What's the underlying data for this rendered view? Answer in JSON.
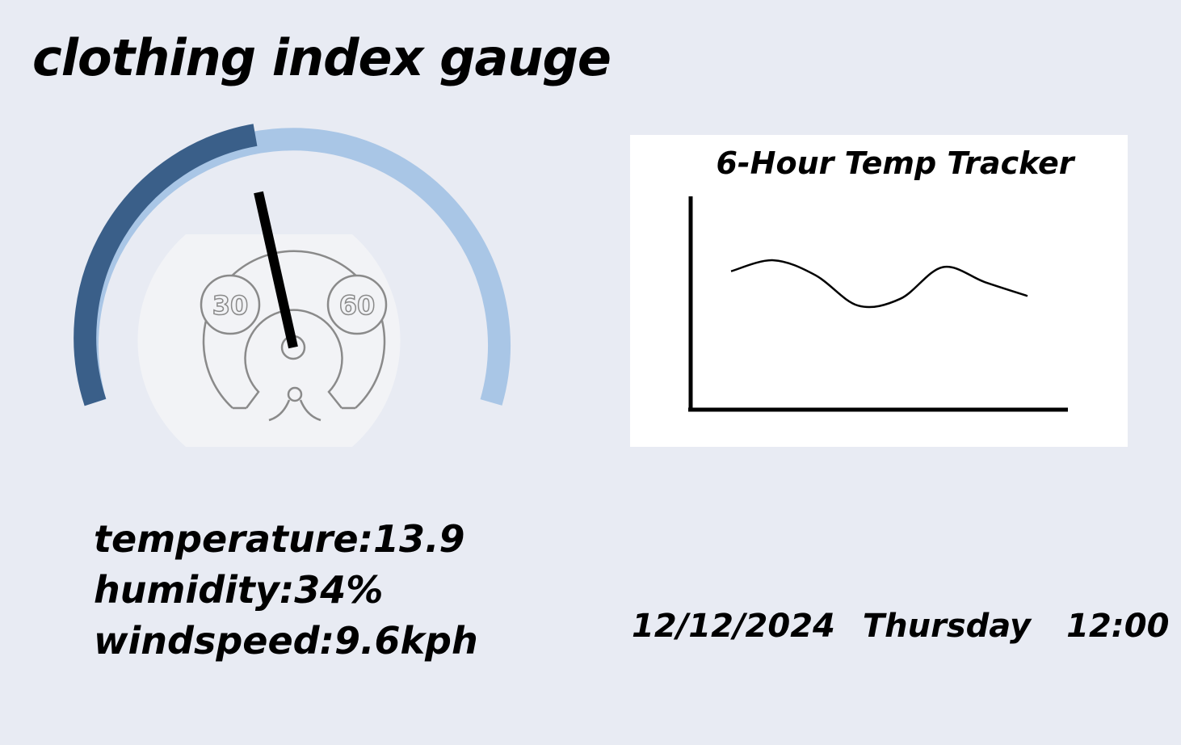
{
  "title": "clothing index gauge",
  "gauge": {
    "min_label": "30",
    "max_label": "60",
    "colors": {
      "filled": "#3a5f89",
      "track": "#a9c6e6",
      "needle": "#000000",
      "icon_stroke": "#8a8a8a",
      "icon_bg": "#f2f3f6"
    },
    "icon": "thermometer-dial-icon"
  },
  "chart": {
    "title": "6-Hour Temp Tracker"
  },
  "chart_data": {
    "type": "line",
    "title": "6-Hour Temp Tracker",
    "xlabel": "",
    "ylabel": "",
    "grid": false,
    "series": [
      {
        "values": [
          0.78,
          0.94,
          0.72,
          0.28,
          0.38,
          0.84,
          0.62,
          0.42
        ]
      }
    ]
  },
  "readings": {
    "temperature": "temperature:13.9",
    "humidity": "humidity:34%",
    "windspeed": "windspeed:9.6kph"
  },
  "datetime": {
    "date": "12/12/2024",
    "day": "Thursday",
    "time": "12:00"
  }
}
